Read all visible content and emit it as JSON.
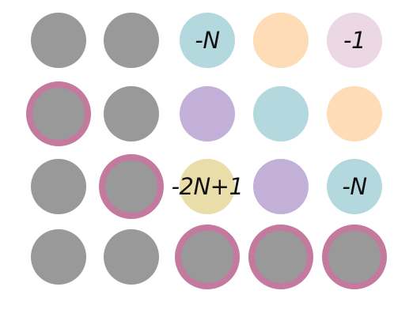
{
  "colors": {
    "gray": "#999999",
    "ring": "#c47a9e",
    "teal": "#b3d8de",
    "peach": "#fddcb6",
    "pink": "#ecd7e4",
    "lavender": "#c2b0d9",
    "gold": "#e9dda9"
  },
  "rows": [
    [
      {
        "fill": "gray",
        "ring": false,
        "label": ""
      },
      {
        "fill": "gray",
        "ring": false,
        "label": ""
      },
      {
        "fill": "teal",
        "ring": false,
        "label": "-N"
      },
      {
        "fill": "peach",
        "ring": false,
        "label": ""
      },
      {
        "fill": "pink",
        "ring": false,
        "label": "-1"
      }
    ],
    [
      {
        "fill": "gray",
        "ring": true,
        "label": ""
      },
      {
        "fill": "gray",
        "ring": false,
        "label": ""
      },
      {
        "fill": "lavender",
        "ring": false,
        "label": ""
      },
      {
        "fill": "teal",
        "ring": false,
        "label": ""
      },
      {
        "fill": "peach",
        "ring": false,
        "label": ""
      }
    ],
    [
      {
        "fill": "gray",
        "ring": false,
        "label": ""
      },
      {
        "fill": "gray",
        "ring": true,
        "label": ""
      },
      {
        "fill": "gold",
        "ring": false,
        "label": "-2N+1"
      },
      {
        "fill": "lavender",
        "ring": false,
        "label": ""
      },
      {
        "fill": "teal",
        "ring": false,
        "label": "-N"
      }
    ],
    [
      {
        "fill": "gray",
        "ring": false,
        "label": ""
      },
      {
        "fill": "gray",
        "ring": false,
        "label": ""
      },
      {
        "fill": "gray",
        "ring": true,
        "label": ""
      },
      {
        "fill": "gray",
        "ring": true,
        "label": ""
      },
      {
        "fill": "gray",
        "ring": true,
        "label": ""
      }
    ]
  ]
}
